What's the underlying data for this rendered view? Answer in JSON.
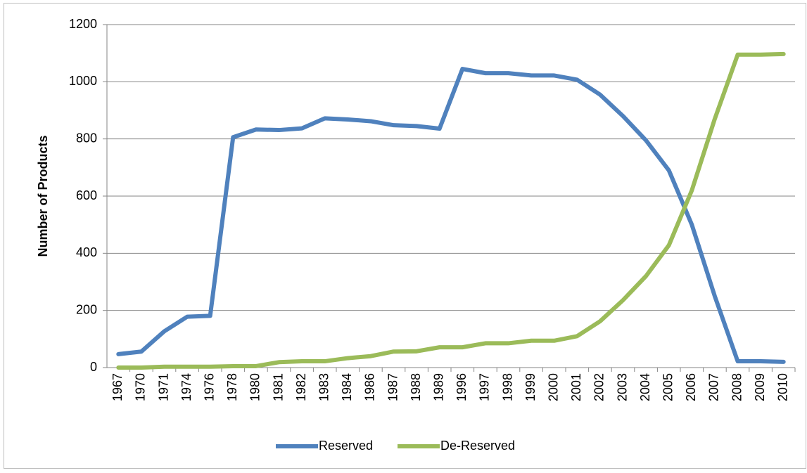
{
  "chart_data": {
    "type": "line",
    "y_label": "Number of Products",
    "categories": [
      "1967",
      "1970",
      "1971",
      "1974",
      "1976",
      "1978",
      "1980",
      "1981",
      "1982",
      "1983",
      "1984",
      "1986",
      "1987",
      "1988",
      "1989",
      "1996",
      "1997",
      "1998",
      "1999",
      "2000",
      "2001",
      "2002",
      "2003",
      "2004",
      "2005",
      "2006",
      "2007",
      "2008",
      "2009",
      "2010"
    ],
    "series": [
      {
        "name": "Reserved",
        "color": "#4f81bd",
        "values": [
          47,
          56,
          127,
          178,
          181,
          806,
          833,
          831,
          837,
          872,
          868,
          862,
          848,
          845,
          836,
          1045,
          1030,
          1030,
          1022,
          1022,
          1007,
          955,
          880,
          795,
          690,
          500,
          250,
          22,
          22,
          20
        ]
      },
      {
        "name": "De-Reserved",
        "color": "#9bbb59",
        "values": [
          0,
          0,
          3,
          3,
          3,
          5,
          5,
          19,
          22,
          22,
          33,
          40,
          56,
          57,
          71,
          71,
          85,
          85,
          94,
          94,
          110,
          162,
          236,
          320,
          428,
          620,
          870,
          1095,
          1095,
          1097
        ]
      }
    ],
    "ylim": [
      0,
      1200
    ],
    "yticks": [
      0,
      200,
      400,
      600,
      800,
      1000,
      1200
    ],
    "grid": true,
    "legend": "bottom"
  }
}
